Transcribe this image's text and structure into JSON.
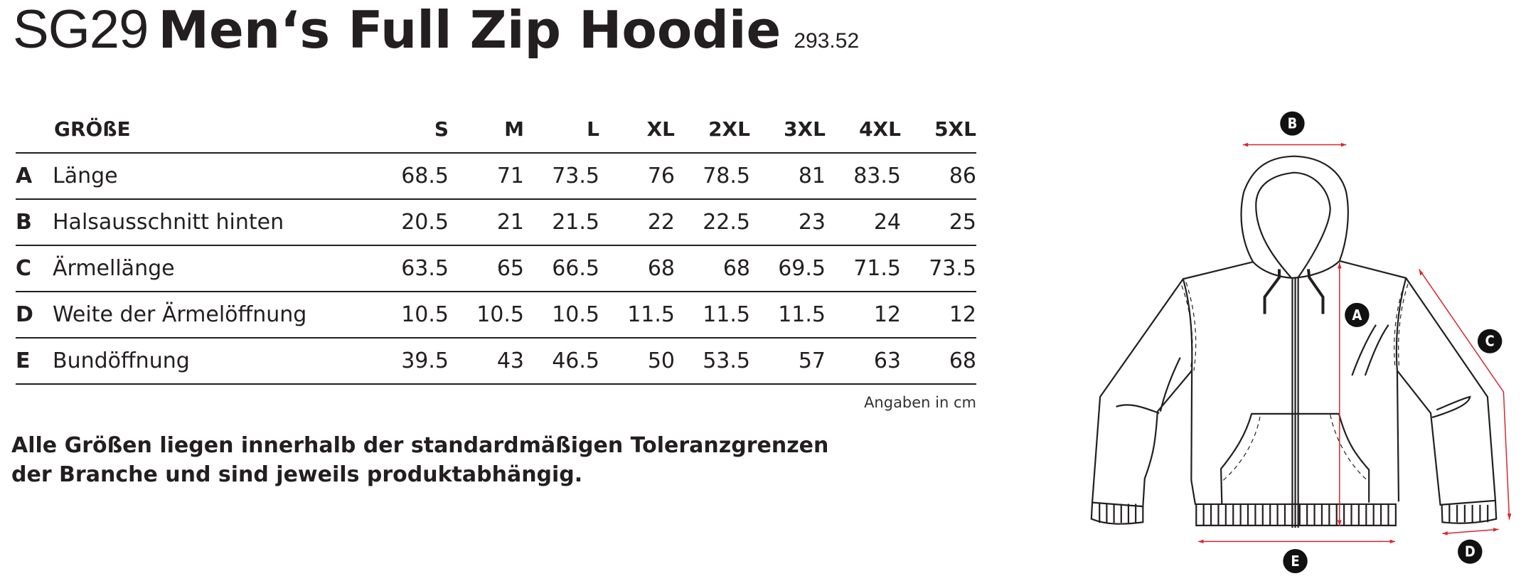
{
  "header": {
    "code": "SG29",
    "name": "Men‘s Full Zip Hoodie",
    "number": "293.52"
  },
  "table": {
    "size_label": "GRÖßE",
    "sizes": [
      "S",
      "M",
      "L",
      "XL",
      "2XL",
      "3XL",
      "4XL",
      "5XL"
    ],
    "rows": [
      {
        "letter": "A",
        "label": "Länge",
        "values": [
          "68.5",
          "71",
          "73.5",
          "76",
          "78.5",
          "81",
          "83.5",
          "86"
        ]
      },
      {
        "letter": "B",
        "label": "Halsausschnitt hinten",
        "values": [
          "20.5",
          "21",
          "21.5",
          "22",
          "22.5",
          "23",
          "24",
          "25"
        ]
      },
      {
        "letter": "C",
        "label": "Ärmellänge",
        "values": [
          "63.5",
          "65",
          "66.5",
          "68",
          "68",
          "69.5",
          "71.5",
          "73.5"
        ]
      },
      {
        "letter": "D",
        "label": "Weite der Ärmelöffnung",
        "values": [
          "10.5",
          "10.5",
          "10.5",
          "11.5",
          "11.5",
          "11.5",
          "12",
          "12"
        ]
      },
      {
        "letter": "E",
        "label": "Bundöffnung",
        "values": [
          "39.5",
          "43",
          "46.5",
          "50",
          "53.5",
          "57",
          "63",
          "68"
        ]
      }
    ],
    "unit_note": "Angaben in cm"
  },
  "note": {
    "line1": "Alle Größen liegen innerhalb der standardmäßigen Toleranzgrenzen",
    "line2": "der Branche und sind jeweils produktabhängig."
  },
  "diagram": {
    "labels": [
      "A",
      "B",
      "C",
      "D",
      "E"
    ],
    "arrow_color": "#d9262e",
    "line_color": "#231f20"
  }
}
